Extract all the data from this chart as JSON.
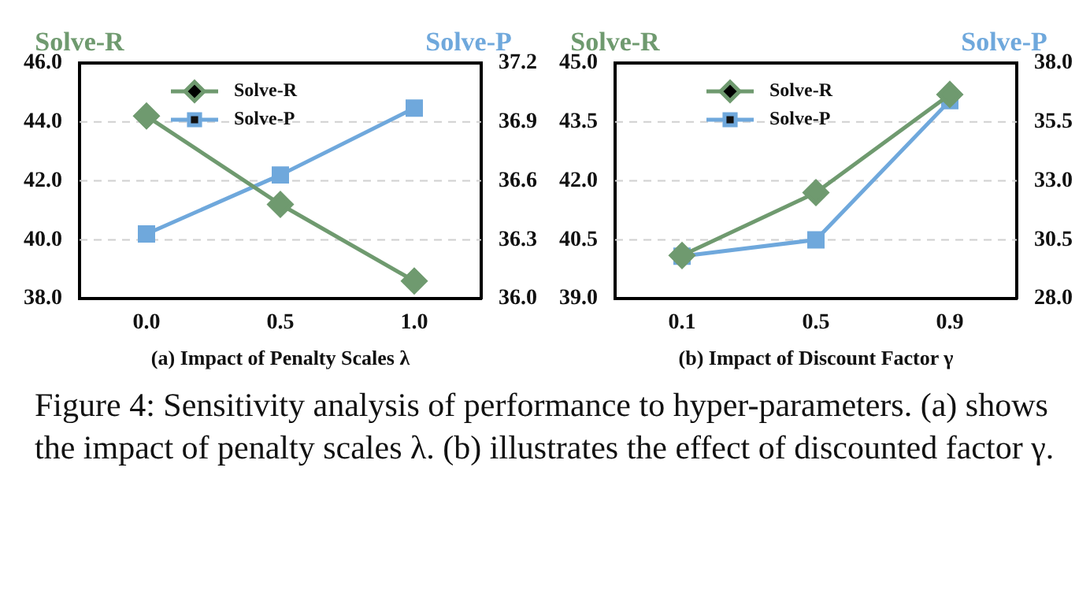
{
  "chart_data": [
    {
      "type": "line",
      "categories": [
        "0.0",
        "0.5",
        "1.0"
      ],
      "xlabel": "(a) Impact of Penalty Scales λ",
      "ylabel": "Solve-R",
      "y2label": "Solve-P",
      "ylim": [
        38,
        46
      ],
      "yticks": [
        {
          "value": 38,
          "label": "38.0"
        },
        {
          "value": 40,
          "label": "40.0"
        },
        {
          "value": 42,
          "label": "42.0"
        },
        {
          "value": 44,
          "label": "44.0"
        },
        {
          "value": 46,
          "label": "46.0"
        }
      ],
      "y2lim": [
        36,
        37.2
      ],
      "y2ticks": [
        {
          "value": 36,
          "label": "36.0"
        },
        {
          "value": 36.3,
          "label": "36.3"
        },
        {
          "value": 36.6,
          "label": "36.6"
        },
        {
          "value": 36.9,
          "label": "36.9"
        },
        {
          "value": 37.2,
          "label": "37.2"
        }
      ],
      "grid": "y",
      "legend": "top left",
      "series": [
        {
          "name": "Solve-R",
          "color": "#6f9a6f",
          "marker": "diamond",
          "values": [
            44.2,
            41.2,
            38.6
          ]
        },
        {
          "name": "Solve-P",
          "color": "#6fa8dc",
          "marker": "square",
          "axis": "y2",
          "values": [
            36.33,
            36.63,
            36.97
          ]
        }
      ],
      "annotations": [
        "Figure 4: Sensitivity analysis of performance to hyper-parameters. (a) shows the impact of penalty scales λ. (b) illustrates the effect of discounted factor γ."
      ]
    },
    {
      "type": "line",
      "categories": [
        "0.1",
        "0.5",
        "0.9"
      ],
      "xlabel": "(b) Impact of Discount Factor γ",
      "ylabel": "Solve-R",
      "y2label": "Solve-P",
      "ylim": [
        39,
        45
      ],
      "yticks": [
        {
          "value": 39,
          "label": "39.0"
        },
        {
          "value": 40.5,
          "label": "40.5"
        },
        {
          "value": 42,
          "label": "42.0"
        },
        {
          "value": 43.5,
          "label": "43.5"
        },
        {
          "value": 45,
          "label": "45.0"
        }
      ],
      "y2lim": [
        28,
        38
      ],
      "y2ticks": [
        {
          "value": 28,
          "label": "28.0"
        },
        {
          "value": 30.5,
          "label": "30.5"
        },
        {
          "value": 33,
          "label": "33.0"
        },
        {
          "value": 35.5,
          "label": "35.5"
        },
        {
          "value": 38,
          "label": "38.0"
        }
      ],
      "grid": "y",
      "legend": "top left",
      "series": [
        {
          "name": "Solve-R",
          "color": "#6f9a6f",
          "marker": "diamond",
          "values": [
            40.1,
            41.7,
            44.2
          ]
        },
        {
          "name": "Solve-P",
          "color": "#6fa8dc",
          "marker": "square",
          "axis": "y2",
          "values": [
            29.8,
            30.5,
            36.4
          ]
        }
      ]
    }
  ]
}
